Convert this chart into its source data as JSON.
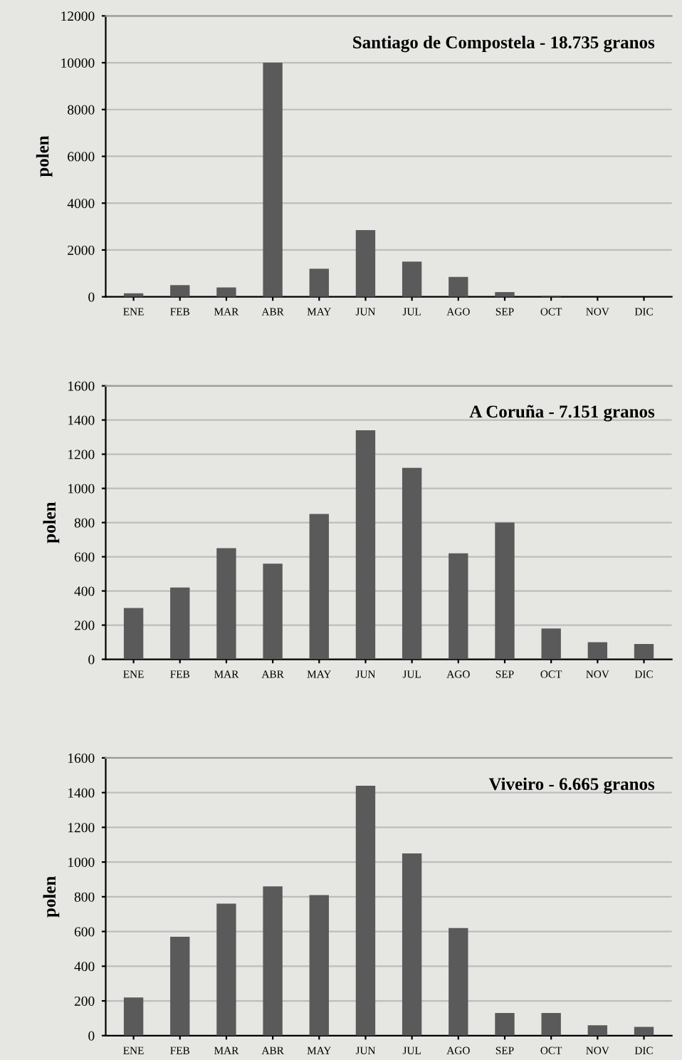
{
  "chart_data": [
    {
      "type": "bar",
      "title": "Santiago de Compostela - 18.735 granos",
      "ylabel": "polen",
      "categories": [
        "ENE",
        "FEB",
        "MAR",
        "ABR",
        "MAY",
        "JUN",
        "JUL",
        "AGO",
        "SEP",
        "OCT",
        "NOV",
        "DIC"
      ],
      "values": [
        150,
        500,
        400,
        10000,
        1200,
        2850,
        1500,
        850,
        200,
        50,
        null,
        null
      ],
      "color": "#5a5a5a",
      "ylim": [
        0,
        12000
      ],
      "yticks": [
        0,
        2000,
        4000,
        6000,
        8000,
        10000,
        12000
      ],
      "grid": "y"
    },
    {
      "type": "bar",
      "title": "A Coruña - 7.151 granos",
      "ylabel": "polen",
      "categories": [
        "ENE",
        "FEB",
        "MAR",
        "ABR",
        "MAY",
        "JUN",
        "JUL",
        "AGO",
        "SEP",
        "OCT",
        "NOV",
        "DIC"
      ],
      "values": [
        300,
        420,
        650,
        560,
        850,
        1340,
        1120,
        620,
        800,
        180,
        100,
        90
      ],
      "color": "#5a5a5a",
      "ylim": [
        0,
        1600
      ],
      "yticks": [
        0,
        200,
        400,
        600,
        800,
        1000,
        1200,
        1400,
        1600
      ],
      "grid": "y"
    },
    {
      "type": "bar",
      "title": "Viveiro - 6.665 granos",
      "ylabel": "polen",
      "categories": [
        "ENE",
        "FEB",
        "MAR",
        "ABR",
        "MAY",
        "JUN",
        "JUL",
        "AGO",
        "SEP",
        "OCT",
        "NOV",
        "DIC"
      ],
      "values": [
        220,
        570,
        760,
        860,
        810,
        1440,
        1050,
        620,
        130,
        130,
        60,
        50
      ],
      "color": "#5a5a5a",
      "ylim": [
        0,
        1600
      ],
      "yticks": [
        0,
        200,
        400,
        600,
        800,
        1000,
        1200,
        1400,
        1600
      ],
      "grid": "y"
    }
  ]
}
